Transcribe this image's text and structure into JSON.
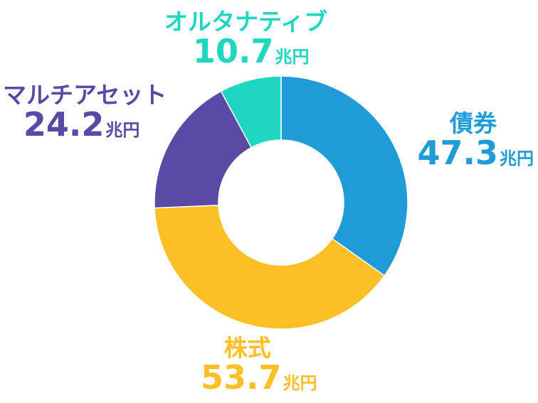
{
  "chart_data": {
    "type": "pie",
    "donut": true,
    "unit": "兆円",
    "slices": [
      {
        "name": "債券",
        "value": 47.3,
        "value_label": "47.3",
        "color": "#1f9bd7"
      },
      {
        "name": "株式",
        "value": 53.7,
        "value_label": "53.7",
        "color": "#fcbf26"
      },
      {
        "name": "マルチアセット",
        "value": 24.2,
        "value_label": "24.2",
        "color": "#5a4aa5"
      },
      {
        "name": "オルタナティブ",
        "value": 10.7,
        "value_label": "10.7",
        "color": "#1fd7c0"
      }
    ]
  }
}
